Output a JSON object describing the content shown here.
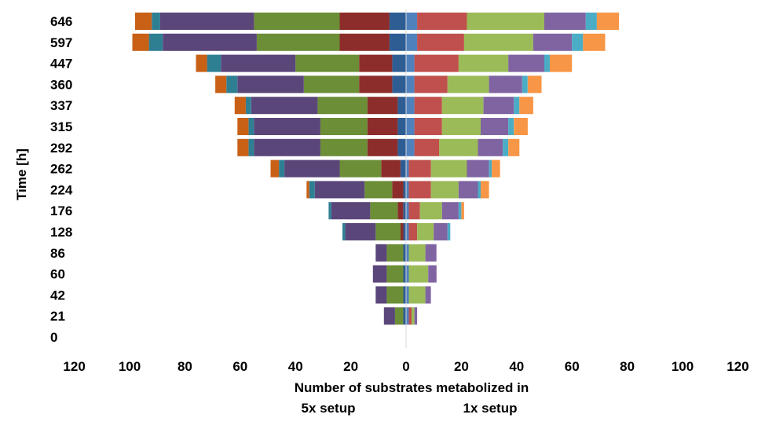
{
  "chart_data": {
    "type": "bar",
    "orientation": "horizontal-diverging",
    "title": "",
    "ylabel": "Time [h]",
    "xlabel": "Number of substrates metabolized in",
    "left_label": "5x setup",
    "right_label": "1x setup",
    "xlim": [
      -120,
      120
    ],
    "x_ticks": [
      120,
      100,
      80,
      60,
      40,
      20,
      0,
      20,
      40,
      60,
      80,
      100,
      120
    ],
    "categories": [
      "646",
      "597",
      "447",
      "360",
      "337",
      "315",
      "292",
      "262",
      "224",
      "176",
      "128",
      "86",
      "60",
      "42",
      "21",
      "0"
    ],
    "segment_colors": [
      "#4f81bd",
      "#c0504d",
      "#9bbb59",
      "#8064a2",
      "#4bacc6",
      "#f79646"
    ],
    "left_segment_colors": [
      "#2e5d94",
      "#8c2d2b",
      "#6b8e36",
      "#5b467a",
      "#2f7f93",
      "#c86016"
    ],
    "left_series": [
      [
        6,
        18,
        31,
        34,
        3,
        6
      ],
      [
        6,
        18,
        30,
        34,
        5,
        6
      ],
      [
        5,
        12,
        23,
        27,
        5,
        4
      ],
      [
        5,
        12,
        20,
        24,
        4,
        4
      ],
      [
        3,
        11,
        18,
        24,
        2,
        4
      ],
      [
        3,
        11,
        17,
        24,
        2,
        4
      ],
      [
        3,
        11,
        17,
        24,
        2,
        4
      ],
      [
        2,
        7,
        15,
        20,
        2,
        3
      ],
      [
        1,
        4,
        10,
        18,
        2,
        1
      ],
      [
        1,
        2,
        10,
        14,
        1,
        0
      ],
      [
        1,
        1,
        9,
        11,
        1,
        0
      ],
      [
        1,
        0,
        6,
        4,
        0,
        0
      ],
      [
        1,
        0,
        6,
        5,
        0,
        0
      ],
      [
        1,
        0,
        6,
        4,
        0,
        0
      ],
      [
        1,
        0,
        3,
        4,
        0,
        0
      ],
      [
        0,
        0,
        0,
        0,
        0,
        0
      ]
    ],
    "right_series": [
      [
        4,
        18,
        28,
        15,
        4,
        8
      ],
      [
        4,
        17,
        25,
        14,
        4,
        8
      ],
      [
        3,
        16,
        18,
        13,
        2,
        8
      ],
      [
        3,
        12,
        15,
        12,
        2,
        5
      ],
      [
        3,
        10,
        15,
        11,
        2,
        5
      ],
      [
        3,
        10,
        14,
        10,
        2,
        5
      ],
      [
        3,
        9,
        14,
        9,
        2,
        4
      ],
      [
        1,
        8,
        13,
        8,
        1,
        3
      ],
      [
        1,
        8,
        10,
        7,
        1,
        3
      ],
      [
        1,
        4,
        8,
        6,
        1,
        1
      ],
      [
        1,
        3,
        6,
        5,
        1,
        0
      ],
      [
        1,
        0,
        6,
        4,
        0,
        0
      ],
      [
        1,
        0,
        7,
        3,
        0,
        0
      ],
      [
        1,
        0,
        6,
        2,
        0,
        0
      ],
      [
        1,
        1,
        1,
        1,
        0,
        0
      ],
      [
        0,
        0,
        0,
        0,
        0,
        0
      ]
    ]
  }
}
